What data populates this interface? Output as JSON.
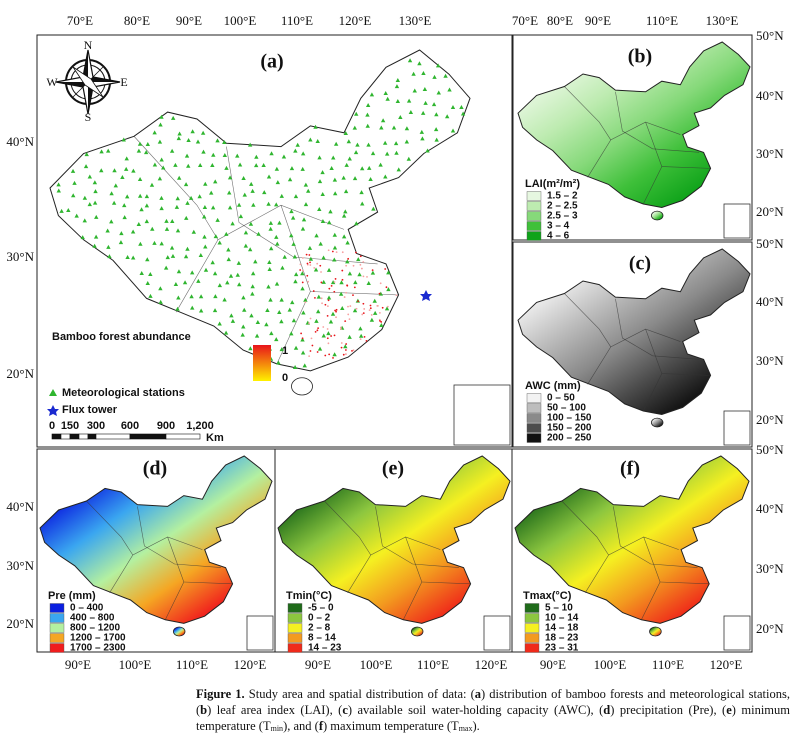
{
  "panels": [
    {
      "label": "(a)",
      "lon_labels": [
        "70°E",
        "80°E",
        "90°E",
        "100°E",
        "110°E",
        "120°E",
        "130°E"
      ],
      "lat_labels": [
        "40°N",
        "30°N",
        "20°N"
      ],
      "compass": [
        "N",
        "E",
        "S",
        "W"
      ],
      "legend": {
        "title": "Bamboo forest abundance",
        "high": "1",
        "low": "0",
        "stations": "Meteorological stations",
        "flux": "Flux tower",
        "scale": [
          "0",
          "150",
          "300",
          "600",
          "900",
          "1,200"
        ],
        "unit": "Km"
      }
    },
    {
      "label": "(b)",
      "lon_labels": [
        "70°E",
        "80°E",
        "90°E",
        "110°E",
        "130°E"
      ],
      "lat_labels": [
        "50°N",
        "40°N",
        "30°N",
        "20°N"
      ],
      "legend": {
        "title": "LAI(m²/m²)",
        "items": [
          {
            "label": "1.5 – 2",
            "color": "#e6f7e0"
          },
          {
            "label": "2 – 2.5",
            "color": "#bdebb0"
          },
          {
            "label": "2.5 – 3",
            "color": "#86d97a"
          },
          {
            "label": "3 – 4",
            "color": "#3fc03a"
          },
          {
            "label": "4 – 6",
            "color": "#0fa31a"
          }
        ]
      }
    },
    {
      "label": "(c)",
      "lat_labels": [
        "50°N",
        "40°N",
        "30°N",
        "20°N"
      ],
      "legend": {
        "title": "AWC (mm)",
        "items": [
          {
            "label": "0 – 50",
            "color": "#f2f2f2"
          },
          {
            "label": "50 – 100",
            "color": "#bdbdbd"
          },
          {
            "label": "100 – 150",
            "color": "#8a8a8a"
          },
          {
            "label": "150 – 200",
            "color": "#4d4d4d"
          },
          {
            "label": "200 – 250",
            "color": "#111111"
          }
        ]
      }
    },
    {
      "label": "(d)",
      "lon_labels": [
        "90°E",
        "100°E",
        "110°E",
        "120°E"
      ],
      "lat_labels": [
        "40°N",
        "30°N",
        "20°N"
      ],
      "legend": {
        "title": "Pre (mm)",
        "items": [
          {
            "label": "0 – 400",
            "color": "#0a1fe0"
          },
          {
            "label": "400 – 800",
            "color": "#3aa6f0"
          },
          {
            "label": "800 – 1200",
            "color": "#b4f0a0"
          },
          {
            "label": "1200 – 1700",
            "color": "#f5a623"
          },
          {
            "label": "1700 – 2300",
            "color": "#f01d1d"
          }
        ]
      }
    },
    {
      "label": "(e)",
      "lon_labels": [
        "90°E",
        "100°E",
        "110°E",
        "120°E"
      ],
      "legend": {
        "title": "Tmin(°C)",
        "items": [
          {
            "label": "-5 – 0",
            "color": "#1f6b1a"
          },
          {
            "label": "0 – 2",
            "color": "#8cc63f"
          },
          {
            "label": "2 – 8",
            "color": "#f5f021"
          },
          {
            "label": "8 – 14",
            "color": "#f39a1f"
          },
          {
            "label": "14 – 23",
            "color": "#ef2a1a"
          }
        ]
      }
    },
    {
      "label": "(f)",
      "lon_labels": [
        "90°E",
        "100°E",
        "110°E",
        "120°E"
      ],
      "lat_labels": [
        "50°N",
        "40°N",
        "30°N",
        "20°N"
      ],
      "legend": {
        "title": "Tmax(°C)",
        "items": [
          {
            "label": "5 – 10",
            "color": "#1f6b1a"
          },
          {
            "label": "10 – 14",
            "color": "#8cc63f"
          },
          {
            "label": "14 – 18",
            "color": "#f5f021"
          },
          {
            "label": "18 – 23",
            "color": "#f39a1f"
          },
          {
            "label": "23 – 31",
            "color": "#ef2a1a"
          }
        ]
      }
    }
  ],
  "caption": [
    {
      "text": "Figure 1.",
      "bold": true
    },
    {
      "text": " Study area and spatial distribution of data: ("
    },
    {
      "text": "a",
      "bold": true
    },
    {
      "text": ") distribution of bamboo forests and meteorological stations, ("
    },
    {
      "text": "b",
      "bold": true
    },
    {
      "text": ") leaf area index (LAI), ("
    },
    {
      "text": "c",
      "bold": true
    },
    {
      "text": ") available soil water-holding capacity (AWC), ("
    },
    {
      "text": "d",
      "bold": true
    },
    {
      "text": ") precipitation (Pre), ("
    },
    {
      "text": "e",
      "bold": true
    },
    {
      "text": ") minimum temperature (T"
    },
    {
      "text": "min",
      "sub": true
    },
    {
      "text": "), and ("
    },
    {
      "text": "f",
      "bold": true
    },
    {
      "text": ") maximum temperature (T"
    },
    {
      "text": "max",
      "sub": true
    },
    {
      "text": ")."
    }
  ]
}
